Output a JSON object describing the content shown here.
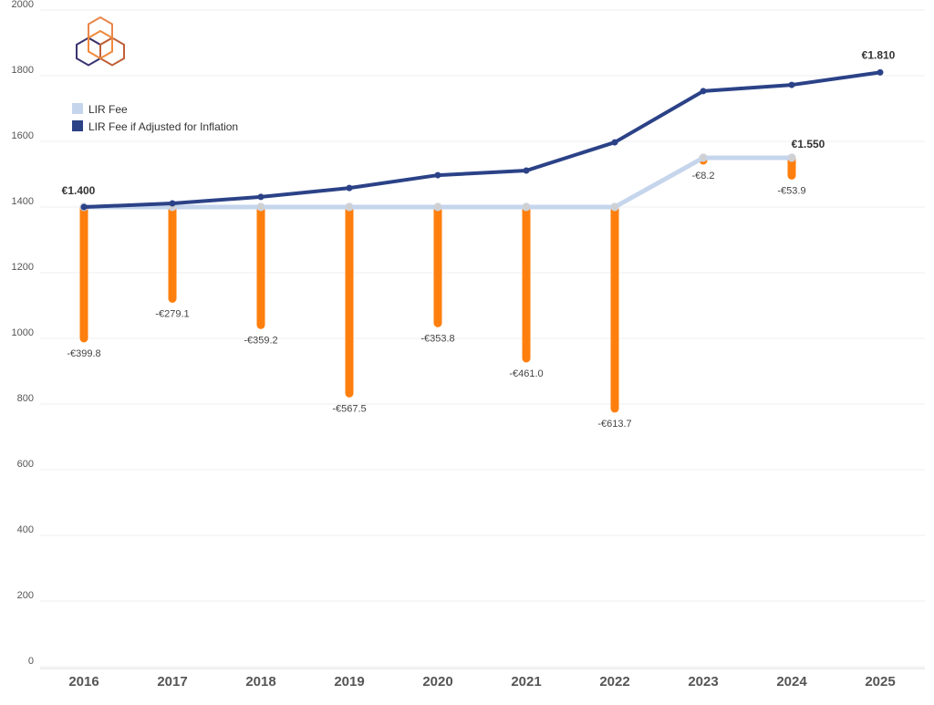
{
  "chart_data": {
    "type": "line",
    "title": "",
    "xlabel": "",
    "ylabel": "",
    "ylim": [
      0,
      2000
    ],
    "yticks": [
      0,
      200,
      400,
      600,
      800,
      1000,
      1200,
      1400,
      1600,
      1800,
      2000
    ],
    "grid": true,
    "legend_placement": "top-left",
    "categories": [
      "2016",
      "2017",
      "2018",
      "2019",
      "2020",
      "2021",
      "2022",
      "2023",
      "2024",
      "2025"
    ],
    "series": [
      {
        "name": "LIR Fee",
        "color": "#c5d5ec",
        "values": [
          1400,
          1400,
          1400,
          1400,
          1400,
          1400,
          1400,
          1550,
          1550,
          null
        ]
      },
      {
        "name": "LIR Fee if Adjusted for Inflation",
        "color": "#2b4287",
        "values": [
          1400,
          1411,
          1431,
          1458,
          1497,
          1511,
          1597,
          1753,
          1772,
          1810
        ]
      }
    ],
    "difference_bars": {
      "color": "#ff7f0e",
      "values": [
        -399.8,
        -279.1,
        -359.2,
        -567.5,
        -353.8,
        -461.0,
        -613.7,
        -8.2,
        -53.9,
        null
      ],
      "labels": [
        "-€399.8",
        "-€279.1",
        "-€359.2",
        "-€567.5",
        "-€353.8",
        "-€461.0",
        "-€613.7",
        "-€8.2",
        "-€53.9",
        ""
      ]
    },
    "annotations": [
      {
        "category": "2016",
        "text": "€1.400"
      },
      {
        "category": "2024",
        "text": "€1.550"
      },
      {
        "category": "2025",
        "text": "€1.810"
      }
    ]
  },
  "logo": {
    "name": "ripe-ncc-hexagon-logo"
  }
}
